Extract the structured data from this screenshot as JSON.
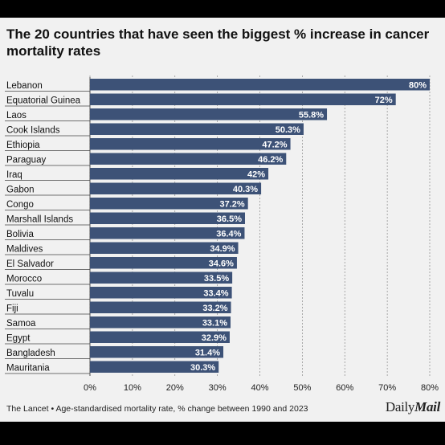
{
  "chart_data": {
    "type": "bar",
    "orientation": "horizontal",
    "title": "The 20 countries that have seen the biggest % increase in cancer mortality rates",
    "categories": [
      "Lebanon",
      "Equatorial Guinea",
      "Laos",
      "Cook Islands",
      "Ethiopia",
      "Paraguay",
      "Iraq",
      "Gabon",
      "Congo",
      "Marshall Islands",
      "Bolivia",
      "Maldives",
      "El Salvador",
      "Morocco",
      "Tuvalu",
      "Fiji",
      "Samoa",
      "Egypt",
      "Bangladesh",
      "Mauritania"
    ],
    "values": [
      80,
      72,
      55.8,
      50.3,
      47.2,
      46.2,
      42,
      40.3,
      37.2,
      36.5,
      36.4,
      34.9,
      34.6,
      33.5,
      33.4,
      33.2,
      33.1,
      32.9,
      31.4,
      30.3
    ],
    "value_labels": [
      "80%",
      "72%",
      "55.8%",
      "50.3%",
      "47.2%",
      "46.2%",
      "42%",
      "40.3%",
      "37.2%",
      "36.5%",
      "36.4%",
      "34.9%",
      "34.6%",
      "33.5%",
      "33.4%",
      "33.2%",
      "33.1%",
      "32.9%",
      "31.4%",
      "30.3%"
    ],
    "xlim": [
      0,
      80
    ],
    "xticks": [
      0,
      10,
      20,
      30,
      40,
      50,
      60,
      70,
      80
    ],
    "xtick_labels": [
      "0%",
      "10%",
      "20%",
      "30%",
      "40%",
      "50%",
      "60%",
      "70%",
      "80%"
    ],
    "grid": true,
    "bar_color": "#3d5277",
    "xlabel": "",
    "ylabel": ""
  },
  "footer": {
    "source": "The Lancet • Age-standardised mortality rate, % change between 1990 and 2023",
    "brand_part1": "Daily",
    "brand_part2": "Mail"
  }
}
